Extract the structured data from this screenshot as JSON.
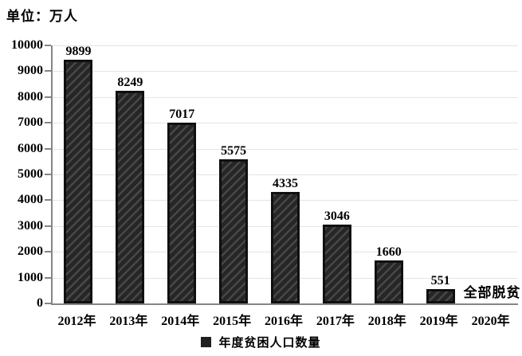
{
  "unit_label": "单位：万人",
  "colors": {
    "bar_fill": "#262626",
    "bar_stripe": "#474747",
    "bar_border": "#101010",
    "gridline": "#e4e4e4",
    "axis": "#858585",
    "legend_marker": "#1f1f1f",
    "text": "#000000",
    "background": "#ffffff"
  },
  "legend": {
    "marker": "square-icon",
    "label": "年度贫困人口数量"
  },
  "chart_data": {
    "type": "bar",
    "title": "",
    "unit": "单位：万人",
    "xlabel": "",
    "ylabel": "",
    "categories": [
      "2012年",
      "2013年",
      "2014年",
      "2015年",
      "2016年",
      "2017年",
      "2018年",
      "2019年",
      "2020年"
    ],
    "values": [
      9899,
      8249,
      7017,
      5575,
      4335,
      3046,
      1660,
      551,
      0
    ],
    "value_labels": [
      "9899",
      "8249",
      "7017",
      "5575",
      "4335",
      "3046",
      "1660",
      "551",
      ""
    ],
    "annotations": [
      {
        "category": "2020年",
        "text": "全部脱贫",
        "position": "baseline"
      }
    ],
    "ylim": [
      0,
      10000
    ],
    "ytick_step": 1000,
    "yticks": [
      0,
      1000,
      2000,
      3000,
      4000,
      5000,
      6000,
      7000,
      8000,
      9000,
      10000
    ],
    "grid": true,
    "hatch": "diagonal-forward",
    "legend": [
      "年度贫困人口数量"
    ],
    "legend_position": "bottom"
  }
}
